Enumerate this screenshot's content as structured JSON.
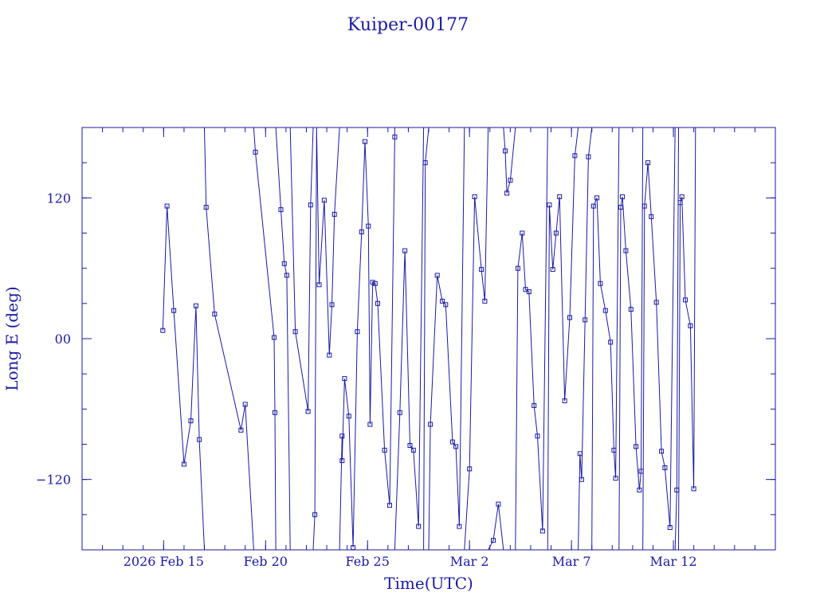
{
  "chart_data": {
    "type": "line",
    "title": "Kuiper-00177",
    "xlabel": "Time(UTC)",
    "ylabel": "Long E (deg)",
    "xlim": [
      "2026-02-11",
      "2026-03-17"
    ],
    "ylim": [
      -180,
      180
    ],
    "x_ticks": [
      {
        "date": "2026-02-15",
        "label": "2026 Feb 15"
      },
      {
        "date": "2026-02-20",
        "label": "Feb 20"
      },
      {
        "date": "2026-02-25",
        "label": "Feb 25"
      },
      {
        "date": "2026-03-02",
        "label": "Mar  2"
      },
      {
        "date": "2026-03-07",
        "label": "Mar  7"
      },
      {
        "date": "2026-03-12",
        "label": "Mar 12"
      }
    ],
    "y_ticks": [
      {
        "value": -120,
        "label": "−120"
      },
      {
        "value": 0,
        "label": "00"
      },
      {
        "value": 120,
        "label": "120"
      }
    ],
    "grid": false,
    "legend": "none",
    "series": [
      {
        "points": [
          [
            "2026-02-14 23:00",
            7
          ],
          [
            "2026-02-15 04:00",
            113
          ],
          [
            "2026-02-15 12:00",
            24
          ],
          [
            "2026-02-16 00:00",
            -107
          ],
          [
            "2026-02-16 08:00",
            -70
          ],
          [
            "2026-02-16 14:00",
            28
          ],
          [
            "2026-02-16 18:00",
            -86
          ],
          [
            "2026-02-17 00:00",
            -180
          ],
          [
            "2026-02-17 00:00",
            180
          ],
          [
            "2026-02-17 02:00",
            112
          ],
          [
            "2026-02-17 12:00",
            21
          ],
          [
            "2026-02-18 19:00",
            -78
          ],
          [
            "2026-02-19 00:00",
            -56
          ],
          [
            "2026-02-19 10:00",
            -180
          ],
          [
            "2026-02-19 10:00",
            180
          ],
          [
            "2026-02-19 12:00",
            159
          ],
          [
            "2026-02-20 10:00",
            1
          ],
          [
            "2026-02-20 11:00",
            -63
          ],
          [
            "2026-02-20 12:00",
            -180
          ],
          [
            "2026-02-20 12:00",
            180
          ],
          [
            "2026-02-20 18:00",
            110
          ],
          [
            "2026-02-20 22:00",
            64
          ],
          [
            "2026-02-21 01:00",
            54
          ],
          [
            "2026-02-21 05:00",
            -180
          ],
          [
            "2026-02-21 05:00",
            180
          ],
          [
            "2026-02-21 11:00",
            6
          ],
          [
            "2026-02-22 02:00",
            -62
          ],
          [
            "2026-02-22 05:00",
            114
          ],
          [
            "2026-02-22 08:00",
            180
          ],
          [
            "2026-02-22 08:00",
            -180
          ],
          [
            "2026-02-22 10:00",
            -150
          ],
          [
            "2026-02-22 12:00",
            180
          ],
          [
            "2026-02-22 12:00",
            180
          ],
          [
            "2026-02-22 15:00",
            46
          ],
          [
            "2026-02-22 21:00",
            118
          ],
          [
            "2026-02-23 03:00",
            -14
          ],
          [
            "2026-02-23 06:00",
            29
          ],
          [
            "2026-02-23 09:00",
            106
          ],
          [
            "2026-02-23 15:00",
            180
          ],
          [
            "2026-02-23 15:00",
            -180
          ],
          [
            "2026-02-23 18:00",
            -83
          ],
          [
            "2026-02-23 18:00",
            -104
          ],
          [
            "2026-02-23 21:00",
            -34
          ],
          [
            "2026-02-24 02:00",
            -66
          ],
          [
            "2026-02-24 07:00",
            -178
          ],
          [
            "2026-02-24 12:00",
            6
          ],
          [
            "2026-02-24 17:00",
            91
          ],
          [
            "2026-02-24 21:00",
            168
          ],
          [
            "2026-02-25 01:00",
            96
          ],
          [
            "2026-02-25 03:00",
            -73
          ],
          [
            "2026-02-25 06:00",
            48
          ],
          [
            "2026-02-25 09:00",
            47
          ],
          [
            "2026-02-25 12:00",
            30
          ],
          [
            "2026-02-25 20:00",
            -95
          ],
          [
            "2026-02-26 02:00",
            -142
          ],
          [
            "2026-02-26 08:00",
            172
          ],
          [
            "2026-02-26 08:00",
            180
          ],
          [
            "2026-02-26 08:00",
            -180
          ],
          [
            "2026-02-26 14:00",
            -63
          ],
          [
            "2026-02-26 20:00",
            75
          ],
          [
            "2026-02-27 02:00",
            -91
          ],
          [
            "2026-02-27 06:00",
            -95
          ],
          [
            "2026-02-27 12:00",
            -160
          ],
          [
            "2026-02-27 18:00",
            180
          ],
          [
            "2026-02-27 18:00",
            -180
          ],
          [
            "2026-02-27 20:00",
            150
          ],
          [
            "2026-02-28 00:00",
            180
          ],
          [
            "2026-02-28 00:00",
            -180
          ],
          [
            "2026-02-28 02:00",
            -73
          ],
          [
            "2026-02-28 10:00",
            54
          ],
          [
            "2026-02-28 16:00",
            32
          ],
          [
            "2026-02-28 20:00",
            29
          ],
          [
            "2026-03-01 04:00",
            -88
          ],
          [
            "2026-03-01 08:00",
            -92
          ],
          [
            "2026-03-01 12:00",
            -160
          ],
          [
            "2026-03-01 18:00",
            180
          ],
          [
            "2026-03-01 18:00",
            -180
          ],
          [
            "2026-03-02 00:00",
            -111
          ],
          [
            "2026-03-02 06:00",
            121
          ],
          [
            "2026-03-02 14:00",
            59
          ],
          [
            "2026-03-02 18:00",
            32
          ],
          [
            "2026-03-02 22:00",
            180
          ],
          [
            "2026-03-02 22:00",
            -180
          ],
          [
            "2026-03-03 04:00",
            -172
          ],
          [
            "2026-03-03 10:00",
            -141
          ],
          [
            "2026-03-03 16:00",
            -180
          ],
          [
            "2026-03-03 16:00",
            180
          ],
          [
            "2026-03-03 18:00",
            160
          ],
          [
            "2026-03-03 20:00",
            124
          ],
          [
            "2026-03-04 00:00",
            135
          ],
          [
            "2026-03-04 06:00",
            180
          ],
          [
            "2026-03-04 06:00",
            -180
          ],
          [
            "2026-03-04 09:00",
            60
          ],
          [
            "2026-03-04 14:00",
            90
          ],
          [
            "2026-03-04 18:00",
            42
          ],
          [
            "2026-03-04 22:00",
            40
          ],
          [
            "2026-03-05 04:00",
            -57
          ],
          [
            "2026-03-05 08:00",
            -83
          ],
          [
            "2026-03-05 14:00",
            -164
          ],
          [
            "2026-03-05 20:00",
            180
          ],
          [
            "2026-03-05 20:00",
            -180
          ],
          [
            "2026-03-05 22:00",
            114
          ],
          [
            "2026-03-06 02:00",
            59
          ],
          [
            "2026-03-06 06:00",
            90
          ],
          [
            "2026-03-06 10:00",
            121
          ],
          [
            "2026-03-06 16:00",
            -53
          ],
          [
            "2026-03-06 22:00",
            18
          ],
          [
            "2026-03-07 04:00",
            156
          ],
          [
            "2026-03-07 08:00",
            180
          ],
          [
            "2026-03-07 08:00",
            -180
          ],
          [
            "2026-03-07 10:00",
            -98
          ],
          [
            "2026-03-07 12:00",
            -120
          ],
          [
            "2026-03-07 16:00",
            16
          ],
          [
            "2026-03-07 20:00",
            155
          ],
          [
            "2026-03-08 00:00",
            180
          ],
          [
            "2026-03-08 00:00",
            -180
          ],
          [
            "2026-03-08 02:00",
            113
          ],
          [
            "2026-03-08 06:00",
            120
          ],
          [
            "2026-03-08 10:00",
            47
          ],
          [
            "2026-03-08 16:00",
            24
          ],
          [
            "2026-03-08 22:00",
            -3
          ],
          [
            "2026-03-09 02:00",
            -95
          ],
          [
            "2026-03-09 04:00",
            -119
          ],
          [
            "2026-03-09 08:00",
            180
          ],
          [
            "2026-03-09 08:00",
            -180
          ],
          [
            "2026-03-09 10:00",
            112
          ],
          [
            "2026-03-09 12:00",
            121
          ],
          [
            "2026-03-09 16:00",
            75
          ],
          [
            "2026-03-09 22:00",
            25
          ],
          [
            "2026-03-10 04:00",
            -92
          ],
          [
            "2026-03-10 08:00",
            -129
          ],
          [
            "2026-03-10 10:00",
            -113
          ],
          [
            "2026-03-10 12:00",
            180
          ],
          [
            "2026-03-10 12:00",
            -180
          ],
          [
            "2026-03-10 14:00",
            113
          ],
          [
            "2026-03-10 18:00",
            150
          ],
          [
            "2026-03-10 22:00",
            104
          ],
          [
            "2026-03-11 04:00",
            31
          ],
          [
            "2026-03-11 10:00",
            -96
          ],
          [
            "2026-03-11 14:00",
            -110
          ],
          [
            "2026-03-11 20:00",
            -161
          ],
          [
            "2026-03-12 02:00",
            180
          ],
          [
            "2026-03-12 02:00",
            -180
          ],
          [
            "2026-03-12 04:00",
            -129
          ],
          [
            "2026-03-12 06:00",
            180
          ],
          [
            "2026-03-12 06:00",
            -180
          ],
          [
            "2026-03-12 08:00",
            116
          ],
          [
            "2026-03-12 10:00",
            121
          ],
          [
            "2026-03-12 14:00",
            33
          ],
          [
            "2026-03-12 20:00",
            11
          ],
          [
            "2026-03-13 00:00",
            -128
          ],
          [
            "2026-03-13 02:00",
            180
          ]
        ]
      }
    ]
  }
}
